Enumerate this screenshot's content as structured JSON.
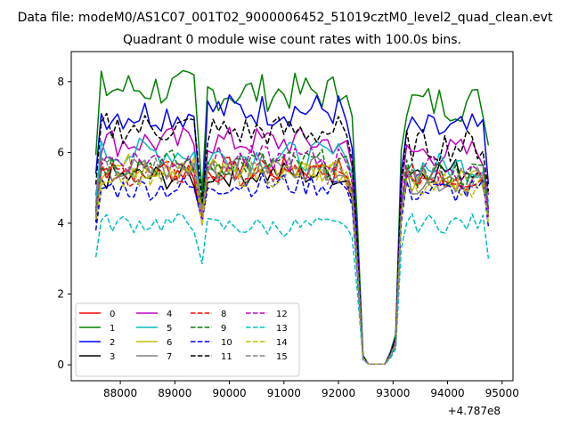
{
  "figure": {
    "suptitle": "Data file: modeM0/AS1C07_001T02_9000006452_51019cztM0_level2_quad_clean.evt",
    "offset_label": "+4.787e8"
  },
  "chart_data": {
    "type": "line",
    "title": "Quadrant 0 module wise count rates with 100.0s bins.",
    "xlabel": "",
    "ylabel": "",
    "x_offset": 478700000,
    "xlim": [
      87100,
      95200
    ],
    "ylim": [
      -0.45,
      8.85
    ],
    "xticks": [
      88000,
      89000,
      90000,
      91000,
      92000,
      93000,
      94000,
      95000
    ],
    "xtick_labels": [
      "88000",
      "89000",
      "90000",
      "91000",
      "92000",
      "93000",
      "94000",
      "95000"
    ],
    "yticks": [
      0,
      2,
      4,
      6,
      8
    ],
    "ytick_labels": [
      "0",
      "2",
      "4",
      "6",
      "8"
    ],
    "grid": false,
    "legend": {
      "location": "lower-left",
      "columns": 4
    },
    "colors": {
      "0": "#ff0000",
      "1": "#008000",
      "2": "#0000ff",
      "3": "#000000",
      "4": "#bf00bf",
      "5": "#00bfbf",
      "6": "#bfbf00",
      "7": "#808080"
    },
    "segments": {
      "seg1": {
        "start": 87550,
        "end": 89350
      },
      "seg2": {
        "start": 89450,
        "end": 92050
      },
      "seg3": {
        "start": 93150,
        "end": 94750
      }
    },
    "series": [
      {
        "name": "0",
        "color": "#ff0000",
        "dashed": false,
        "levels": [
          5.5,
          5.5,
          4.0,
          5.2,
          0.18,
          0.02,
          5.3,
          4.4
        ]
      },
      {
        "name": "1",
        "color": "#008000",
        "dashed": false,
        "levels": [
          7.8,
          7.7,
          4.7,
          7.8,
          0.27,
          0.02,
          7.4,
          6.2
        ]
      },
      {
        "name": "2",
        "color": "#0000ff",
        "dashed": false,
        "levels": [
          7.1,
          7.2,
          4.3,
          6.8,
          0.24,
          0.02,
          6.6,
          5.1
        ]
      },
      {
        "name": "3",
        "color": "#000000",
        "dashed": false,
        "levels": [
          5.3,
          5.4,
          4.0,
          5.2,
          0.18,
          0.02,
          5.5,
          4.3
        ]
      },
      {
        "name": "4",
        "color": "#bf00bf",
        "dashed": false,
        "levels": [
          6.3,
          6.3,
          4.3,
          6.2,
          0.22,
          0.02,
          6.0,
          4.8
        ]
      },
      {
        "name": "5",
        "color": "#00bfbf",
        "dashed": false,
        "levels": [
          6.0,
          5.9,
          4.4,
          6.0,
          0.2,
          0.02,
          5.6,
          4.6
        ]
      },
      {
        "name": "6",
        "color": "#bfbf00",
        "dashed": false,
        "levels": [
          5.6,
          5.5,
          4.4,
          5.5,
          0.19,
          0.02,
          5.3,
          4.4
        ]
      },
      {
        "name": "7",
        "color": "#808080",
        "dashed": false,
        "levels": [
          5.5,
          5.6,
          4.2,
          5.4,
          0.19,
          0.02,
          5.2,
          4.2
        ]
      },
      {
        "name": "8",
        "color": "#ff0000",
        "dashed": true,
        "levels": [
          5.4,
          5.4,
          4.0,
          5.5,
          0.19,
          0.02,
          5.3,
          4.1
        ]
      },
      {
        "name": "9",
        "color": "#008000",
        "dashed": true,
        "levels": [
          5.7,
          5.7,
          4.3,
          5.7,
          0.2,
          0.02,
          5.4,
          4.4
        ]
      },
      {
        "name": "10",
        "color": "#0000ff",
        "dashed": true,
        "levels": [
          5.0,
          5.1,
          3.9,
          5.0,
          0.18,
          0.02,
          4.9,
          3.9
        ]
      },
      {
        "name": "11",
        "color": "#000000",
        "dashed": true,
        "levels": [
          6.7,
          6.6,
          4.5,
          6.4,
          0.23,
          0.02,
          6.2,
          4.9
        ]
      },
      {
        "name": "12",
        "color": "#bf00bf",
        "dashed": true,
        "levels": [
          5.8,
          5.8,
          4.3,
          5.8,
          0.2,
          0.02,
          5.5,
          4.4
        ]
      },
      {
        "name": "13",
        "color": "#00bfbf",
        "dashed": true,
        "levels": [
          4.0,
          3.9,
          3.1,
          4.0,
          0.14,
          0.02,
          4.0,
          3.0
        ]
      },
      {
        "name": "14",
        "color": "#bfbf00",
        "dashed": true,
        "levels": [
          5.4,
          5.4,
          4.1,
          5.3,
          0.19,
          0.02,
          5.1,
          4.0
        ]
      },
      {
        "name": "15",
        "color": "#808080",
        "dashed": true,
        "levels": [
          5.5,
          5.4,
          4.1,
          5.4,
          0.19,
          0.02,
          5.3,
          4.2
        ]
      }
    ]
  }
}
